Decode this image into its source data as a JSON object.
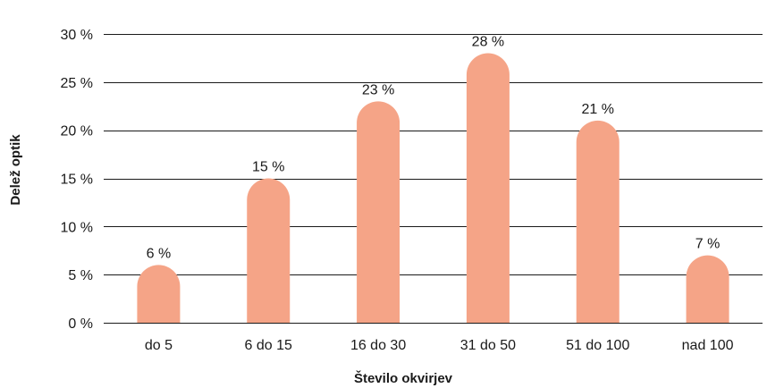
{
  "chart_data": {
    "type": "bar",
    "categories": [
      "do 5",
      "6 do 15",
      "16 do 30",
      "31 do 50",
      "51 do 100",
      "nad 100"
    ],
    "values": [
      6,
      15,
      23,
      28,
      21,
      7
    ],
    "data_labels": [
      "6 %",
      "15 %",
      "23 %",
      "28 %",
      "21 %",
      "7 %"
    ],
    "xlabel": "Število okvirjev",
    "ylabel": "Delež optik",
    "ylim": [
      0,
      30
    ],
    "yticks": [
      0,
      5,
      10,
      15,
      20,
      25,
      30
    ],
    "ytick_labels": [
      "0 %",
      "5 %",
      "10 %",
      "15 %",
      "20 %",
      "25 %",
      "30 %"
    ],
    "grid": true,
    "bar_color": "#f5a487",
    "bar_shape": "rounded-top"
  }
}
